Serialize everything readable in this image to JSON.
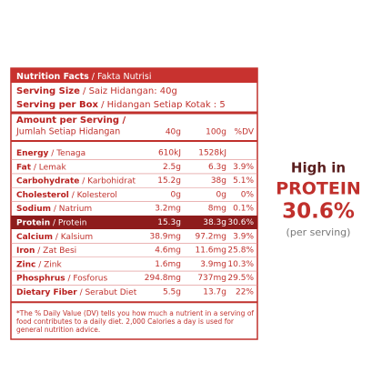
{
  "panel": {
    "title": "Nutrition Facts",
    "title_local": "/ Fakta Nutrisi",
    "serving_size_label": "Serving Size",
    "serving_size_value": "/ Saiz Hidangan: 40g",
    "serving_box_label": "Serving per Box",
    "serving_box_value": "/ Hidangan Setiap Kotak : 5",
    "amount_label": "Amount per Serving /",
    "amount_local": "Jumlah Setiap Hidangan",
    "columns": [
      "40g",
      "100g",
      "%DV"
    ],
    "rows": [
      {
        "name": "Energy",
        "local": "/ Tenaga",
        "cells": [
          "610kJ",
          "1528kJ"
        ]
      },
      {
        "name": "Fat",
        "local": "/ Lemak",
        "cells": [
          "2.5g",
          "6.3g",
          "3.9%"
        ]
      },
      {
        "name": "Carbohydrate",
        "local": "/ Karbohidrat",
        "cells": [
          "15.2g",
          "38g",
          "5.1%"
        ]
      },
      {
        "name": "Cholesterol",
        "local": "/ Kolesterol",
        "cells": [
          "0g",
          "0g",
          "0%"
        ]
      },
      {
        "name": "Sodium",
        "local": "/ Natrium",
        "cells": [
          "3.2mg",
          "8mg",
          "0.1%"
        ]
      },
      {
        "name": "Protein",
        "local": "/ Protein",
        "cells": [
          "15.3g",
          "38.3g",
          "30.6%"
        ],
        "highlight": true
      },
      {
        "name": "Calcium",
        "local": "/ Kalsium",
        "cells": [
          "38.9mg",
          "97.2mg",
          "3.9%"
        ]
      },
      {
        "name": "Iron",
        "local": "/ Zat Besi",
        "cells": [
          "4.6mg",
          "11.6mg",
          "25.8%"
        ]
      },
      {
        "name": "Zinc",
        "local": "/ Zink",
        "cells": [
          "1.6mg",
          "3.9mg",
          "10.3%"
        ]
      },
      {
        "name": "Phosphrus",
        "local": "/ Fosforus",
        "cells": [
          "294.8mg",
          "737mg",
          "29.5%"
        ]
      },
      {
        "name": "Dietary Fiber",
        "local": "/ Serabut Diet",
        "cells": [
          "5.5g",
          "13.7g",
          "22%"
        ]
      }
    ],
    "footnote": "*The % Daily Value (DV) tells you how much a nutrient in a serving of food contributes to a daily diet. 2,000 Calories a day is used for general nutrition advice."
  },
  "callout": {
    "line1": "High in",
    "line2": "PROTEIN",
    "line3": "30.6%",
    "line4": "(per serving)"
  }
}
